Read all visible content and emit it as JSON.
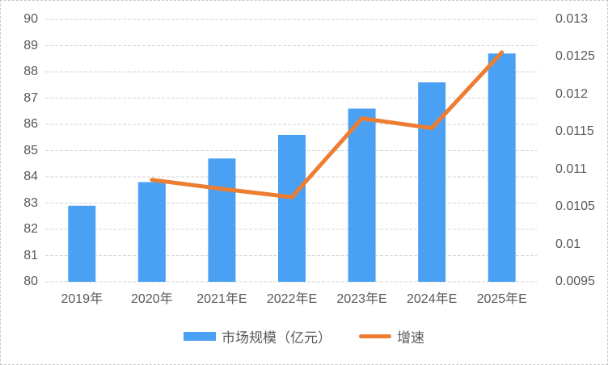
{
  "chart_data": {
    "type": "bar+line",
    "title": "",
    "categories": [
      "2019年",
      "2020年",
      "2021年E",
      "2022年E",
      "2023年E",
      "2024年E",
      "2025年E"
    ],
    "series": [
      {
        "name": "市场规模（亿元）",
        "type": "bar",
        "axis": "left",
        "color": "#4aa1f3",
        "values": [
          82.9,
          83.8,
          84.7,
          85.6,
          86.6,
          87.6,
          88.7
        ]
      },
      {
        "name": "增速",
        "type": "line",
        "axis": "right",
        "color": "#ed7d31",
        "values": [
          null,
          0.01086,
          0.01074,
          0.01063,
          0.01168,
          0.01155,
          0.01256
        ]
      }
    ],
    "left_axis": {
      "min": 80,
      "max": 90,
      "step": 1,
      "tick_labels": [
        "90",
        "89",
        "88",
        "87",
        "86",
        "85",
        "84",
        "83",
        "82",
        "81",
        "80"
      ]
    },
    "right_axis": {
      "min": 0.0095,
      "max": 0.013,
      "step": 0.0005,
      "tick_labels": [
        "0.013",
        "0.0125",
        "0.012",
        "0.0115",
        "0.011",
        "0.0105",
        "0.01",
        "0.0095"
      ]
    },
    "grid": true,
    "legend_position": "bottom",
    "colors": {
      "bar": "#4aa1f3",
      "line": "#ed7d31",
      "grid": "#d6d6d6",
      "axis_text": "#595959",
      "legend_text": "#595959",
      "border": "#c8c8c8",
      "background": "#ffffff"
    }
  }
}
